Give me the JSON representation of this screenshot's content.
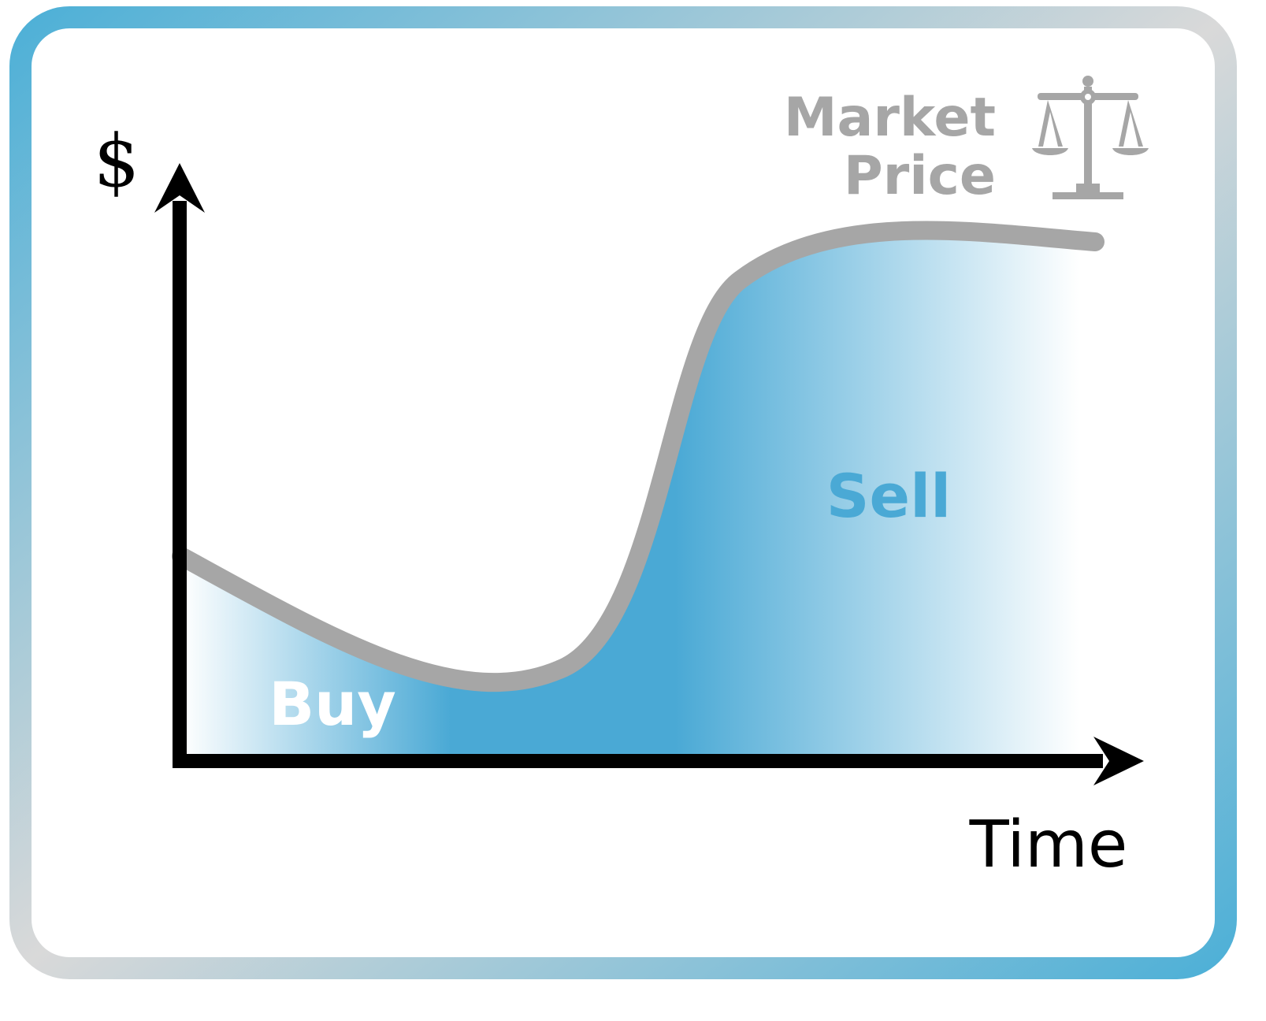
{
  "labels": {
    "y_axis": "$",
    "x_axis": "Time",
    "curve": [
      "Market",
      "Price"
    ],
    "buy": "Buy",
    "sell": "Sell"
  },
  "icons": {
    "legend_icon": "scale-icon"
  },
  "colors": {
    "border_blue": "#4eb0d7",
    "border_gray": "#d9d9d9",
    "curve": "#a6a6a6",
    "fill_blue": "#4aa9d5",
    "axis": "#000000",
    "sell_text": "#4aa9d5",
    "buy_text": "#ffffff"
  }
}
